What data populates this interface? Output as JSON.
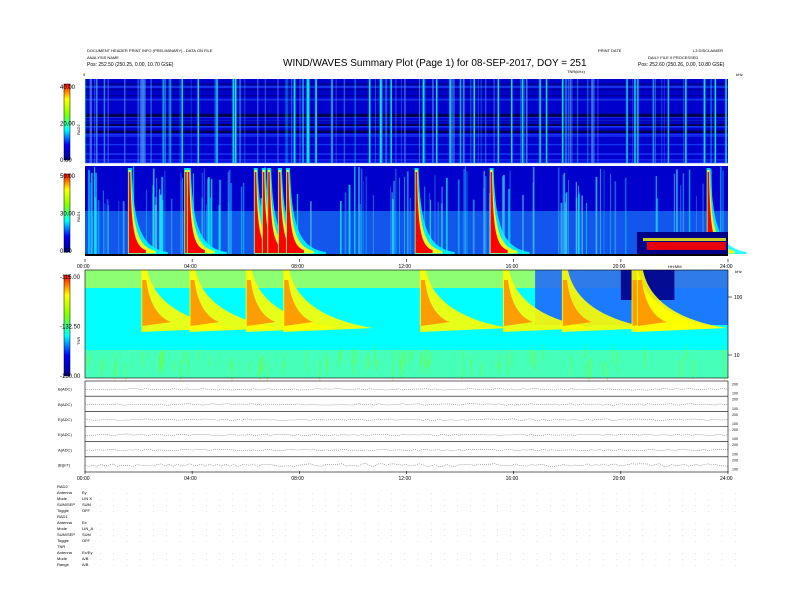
{
  "header": {
    "top_left_1": "DOCUMENT HEADER PRINT INFO (PRELIMINARY) - DATA ON FILE",
    "top_left_2": "ANALYSIS NAME",
    "pos_left": "Pos:   252.50 (250.25, 0.00, 10.70 GSE)",
    "title": "WIND/WAVES Summary Plot (Page 1) for 08-SEP-2017, DOY = 251",
    "center_ref": "PRINT DATE",
    "right_top": "L3 DISCLAIMER",
    "right_line2": "DAILY FILE 0   PROCESSED",
    "pos_right": "Pos:   252.60 (250.26, 0.00, 10.80 GSE)",
    "tnr_label": "TNR(kHz)",
    "start_marker": "0",
    "end_marker": "kHz"
  },
  "colors": {
    "background": "#00008b",
    "noise": "#0000cd",
    "medium": "#00ffff",
    "burst_mid": "#ffff00",
    "burst_core": "#ff0000"
  },
  "chart_data": [
    {
      "type": "heatmap",
      "panel": "RAD2",
      "ylabel": "RAD2",
      "yticks": [
        "40.00",
        "20.00",
        "0.00"
      ],
      "ylim": [
        0,
        40
      ],
      "colorbar": "jet",
      "burst_times_hr": [
        3.6,
        4.2,
        4.9,
        5.6,
        7.8,
        8.3,
        8.6,
        10.6,
        11.0,
        11.4,
        12.6,
        13.1,
        13.6,
        14.5,
        15.4,
        15.9,
        16.3,
        17.2,
        17.8,
        20.5,
        22.4,
        23.1,
        23.5,
        23.9
      ]
    },
    {
      "type": "heatmap",
      "panel": "RAD1",
      "ylabel": "RAD1",
      "yticks": [
        "50.00",
        "30.00",
        "0.00"
      ],
      "ylim": [
        0,
        50
      ],
      "colorbar": "jet",
      "xlabel": "HH:MM",
      "xticks": [
        "00:00",
        "04:00",
        "08:00",
        "12:00",
        "16:00",
        "20:00",
        "24:00"
      ],
      "xlim": [
        0,
        24
      ],
      "burst_times_hr": [
        1.6,
        3.7,
        3.8,
        6.3,
        6.6,
        6.8,
        7.2,
        7.5,
        12.3,
        15.1,
        23.2
      ],
      "event_band_hr": [
        20.6,
        24.0
      ]
    },
    {
      "type": "heatmap",
      "panel": "TNR",
      "ylabel": "TNR",
      "yticks": [
        "-115.00",
        "-132.50",
        "-150.00"
      ],
      "ylim": [
        -150,
        -115
      ],
      "right_ticks": [
        "100",
        "10"
      ],
      "right_label": "kHz",
      "corner_label": "HH:MM",
      "xticks": [
        "00:00",
        "04:00",
        "08:00",
        "12:00",
        "16:00",
        "20:00",
        "24:00"
      ],
      "xlim": [
        0,
        24
      ],
      "burst_times_hr": [
        2.1,
        3.9,
        6.0,
        7.4,
        12.5,
        15.6,
        17.8,
        20.4,
        20.6
      ]
    },
    {
      "type": "line",
      "panel": "TIMESERIES",
      "rows": [
        {
          "name": "B(ADC)",
          "ticks": [
            "200",
            "100"
          ]
        },
        {
          "name": "B(ADC)",
          "ticks": [
            "200",
            "100"
          ]
        },
        {
          "name": "E(ADC)",
          "ticks": [
            "200",
            "100"
          ]
        },
        {
          "name": "E(ADC)",
          "ticks": [
            "200",
            "100"
          ]
        },
        {
          "name": "A(ADC)",
          "ticks": [
            "200",
            "100"
          ]
        },
        {
          "name": "|B|(nT)",
          "ticks": [
            "200",
            "100"
          ]
        }
      ],
      "xticks": [
        "00:00",
        "04:00",
        "08:00",
        "12:00",
        "16:00",
        "20:00",
        "24:00"
      ],
      "xlim": [
        0,
        24
      ]
    }
  ],
  "status_blocks": [
    {
      "title": "RAD2",
      "lines": [
        {
          "key": "Antenna",
          "val": "Ey"
        },
        {
          "key": "Mode",
          "val": "LIN X"
        },
        {
          "key": "SUM/SEP",
          "val": "SUM"
        },
        {
          "key": "Toggle",
          "val": "OFF"
        }
      ]
    },
    {
      "title": "RAD1",
      "lines": [
        {
          "key": "Antenna",
          "val": "Ex"
        },
        {
          "key": "Mode",
          "val": "LIN_A"
        },
        {
          "key": "SUM/SEP",
          "val": "SUM"
        },
        {
          "key": "Toggle",
          "val": "OFF"
        }
      ]
    },
    {
      "title": "TNR",
      "lines": [
        {
          "key": "Antenna",
          "val": "Ex/Ey"
        },
        {
          "key": "Mode",
          "val": "A/B"
        },
        {
          "key": "Range",
          "val": "A/B"
        }
      ]
    }
  ]
}
